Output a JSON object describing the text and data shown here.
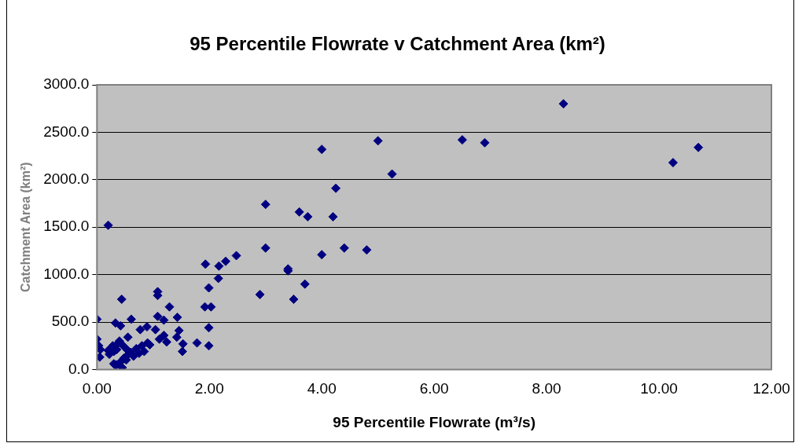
{
  "chart_data": {
    "type": "scatter",
    "title": "95 Percentile Flowrate v Catchment Area (km²)",
    "xlabel": "95 Percentile Flowrate (m³/s)",
    "ylabel": "Catchment Area (km²)",
    "x": [
      4.0,
      5.0,
      6.5,
      6.9,
      8.3,
      10.25,
      10.7,
      5.25,
      4.25,
      3.0,
      3.6,
      3.75,
      4.2,
      3.0,
      4.0,
      4.4,
      4.8,
      3.4,
      3.4,
      2.9,
      3.5,
      3.7,
      2.48,
      2.29,
      2.17,
      2.16,
      1.93,
      1.99,
      1.92,
      2.03,
      1.99,
      1.99,
      0.2,
      1.78,
      1.53,
      1.52,
      1.46,
      1.42,
      1.43,
      1.29,
      1.08,
      1.08,
      1.08,
      1.19,
      1.04,
      1.11,
      1.24,
      1.19,
      0.94,
      0.84,
      0.89,
      0.77,
      0.44,
      0.61,
      0.0,
      0.33,
      0.42,
      0.55,
      0.0,
      0.2,
      0.22,
      0.25,
      0.28,
      0.3,
      0.35,
      0.38,
      0.4,
      0.45,
      0.5,
      0.55,
      0.6,
      0.7,
      0.75,
      0.8,
      0.9,
      0.03,
      0.06,
      0.3,
      0.35,
      0.48,
      0.56,
      0.65,
      0.32,
      0.42,
      0.52,
      0.05,
      0.45
    ],
    "values": [
      2320,
      2410,
      2420,
      2390,
      2800,
      2180,
      2340,
      2060,
      1910,
      1740,
      1660,
      1610,
      1610,
      1280,
      1210,
      1280,
      1260,
      1060,
      1040,
      790,
      740,
      900,
      1200,
      1140,
      1090,
      960,
      1110,
      860,
      660,
      660,
      440,
      250,
      1520,
      280,
      270,
      190,
      410,
      340,
      550,
      660,
      820,
      780,
      560,
      520,
      420,
      320,
      290,
      360,
      260,
      190,
      450,
      420,
      740,
      530,
      530,
      490,
      460,
      340,
      320,
      200,
      160,
      220,
      250,
      190,
      210,
      280,
      300,
      260,
      230,
      200,
      180,
      220,
      170,
      250,
      280,
      250,
      210,
      60,
      50,
      120,
      160,
      140,
      50,
      80,
      100,
      130,
      20
    ],
    "color": "#000080",
    "marker": "diamond",
    "grid": "y",
    "xlim": [
      0,
      12
    ],
    "xticks": [
      {
        "value": 0,
        "label": "0.00"
      },
      {
        "value": 2,
        "label": "2.00"
      },
      {
        "value": 4,
        "label": "4.00"
      },
      {
        "value": 6,
        "label": "6.00"
      },
      {
        "value": 8,
        "label": "8.00"
      },
      {
        "value": 10,
        "label": "10.00"
      },
      {
        "value": 12,
        "label": "12.00"
      }
    ],
    "ylim": [
      0,
      3000
    ],
    "yticks": [
      {
        "value": 0,
        "label": "0.0"
      },
      {
        "value": 500,
        "label": "500.0"
      },
      {
        "value": 1000,
        "label": "1000.0"
      },
      {
        "value": 1500,
        "label": "1500.0"
      },
      {
        "value": 2000,
        "label": "2000.0"
      },
      {
        "value": 2500,
        "label": "2500.0"
      },
      {
        "value": 3000,
        "label": "3000.0"
      }
    ]
  }
}
